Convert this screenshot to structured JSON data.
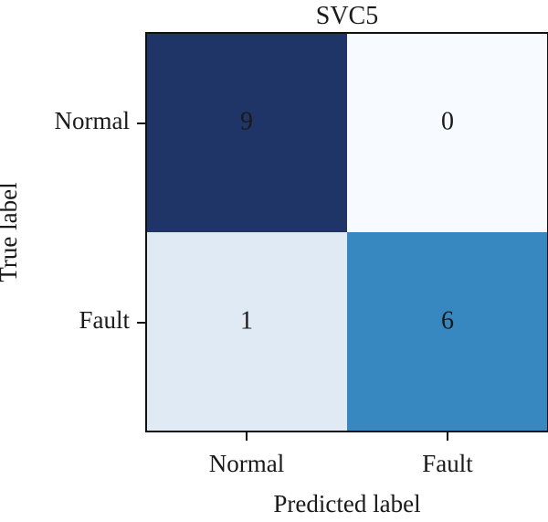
{
  "chart_data": {
    "type": "heatmap",
    "title": "SVC5",
    "xlabel": "Predicted label",
    "ylabel": "True label",
    "x_categories": [
      "Normal",
      "Fault"
    ],
    "y_categories": [
      "Normal",
      "Fault"
    ],
    "values": [
      [
        9,
        0
      ],
      [
        1,
        6
      ]
    ],
    "cell_colors": [
      [
        "#1f3467",
        "#f7fbff"
      ],
      [
        "#dfeaf4",
        "#3787c0"
      ]
    ],
    "colormap": "Blues",
    "grid": false,
    "legend": "none"
  }
}
